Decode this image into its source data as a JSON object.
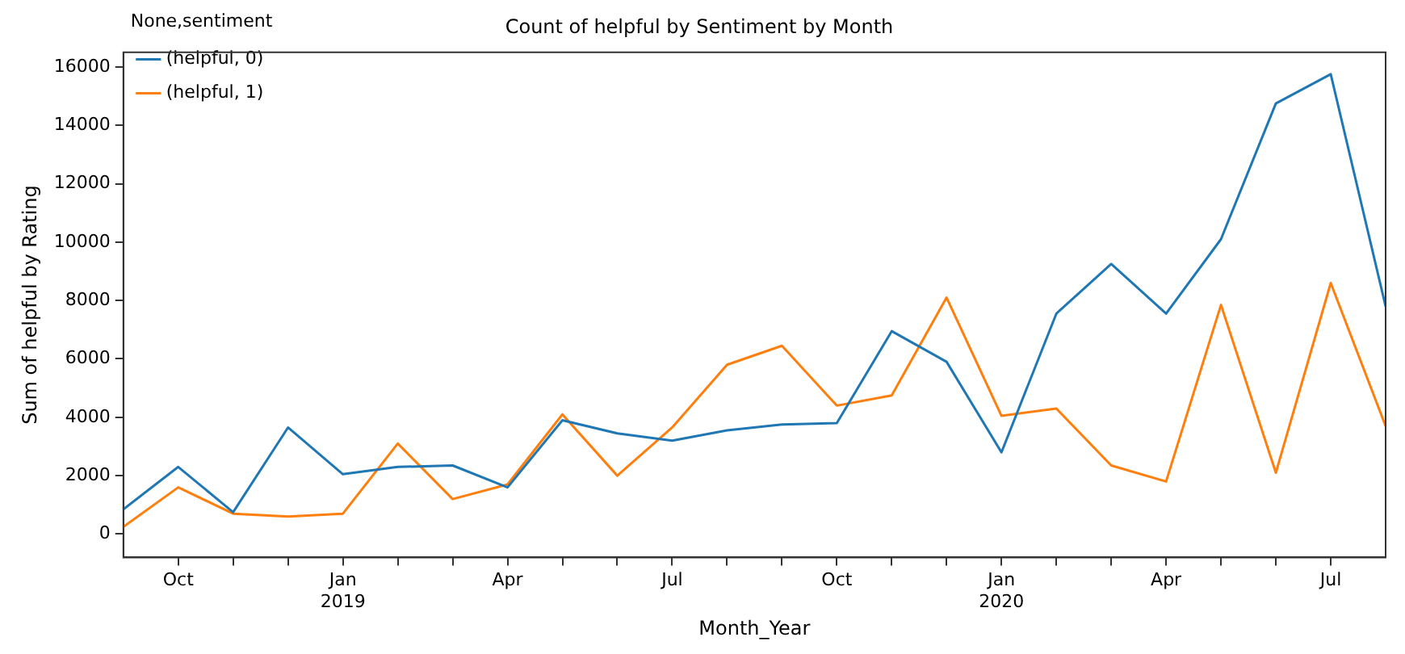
{
  "chart_data": {
    "type": "line",
    "title": "Count of helpful by Sentiment by Month",
    "xlabel": "Month_Year",
    "ylabel": "Sum of helpful by Rating",
    "legend_title": "None,sentiment",
    "legend": "top left",
    "grid": false,
    "x": [
      "2018-09",
      "2018-10",
      "2018-11",
      "2018-12",
      "2019-01",
      "2019-02",
      "2019-03",
      "2019-04",
      "2019-05",
      "2019-06",
      "2019-07",
      "2019-08",
      "2019-09",
      "2019-10",
      "2019-11",
      "2019-12",
      "2020-01",
      "2020-02",
      "2020-03",
      "2020-04",
      "2020-05",
      "2020-06",
      "2020-07",
      "2020-08"
    ],
    "xlim": [
      "2018-09",
      "2020-08"
    ],
    "xticks": [
      {
        "value": "2018-10",
        "label": "Oct"
      },
      {
        "value": "2018-11",
        "label": null
      },
      {
        "value": "2018-12",
        "label": null
      },
      {
        "value": "2019-01",
        "label": "Jan\n2019"
      },
      {
        "value": "2019-02",
        "label": null
      },
      {
        "value": "2019-03",
        "label": null
      },
      {
        "value": "2019-04",
        "label": "Apr"
      },
      {
        "value": "2019-05",
        "label": null
      },
      {
        "value": "2019-06",
        "label": null
      },
      {
        "value": "2019-07",
        "label": "Jul"
      },
      {
        "value": "2019-08",
        "label": null
      },
      {
        "value": "2019-09",
        "label": null
      },
      {
        "value": "2019-10",
        "label": "Oct"
      },
      {
        "value": "2019-11",
        "label": null
      },
      {
        "value": "2019-12",
        "label": null
      },
      {
        "value": "2020-01",
        "label": "Jan\n2020"
      },
      {
        "value": "2020-02",
        "label": null
      },
      {
        "value": "2020-03",
        "label": null
      },
      {
        "value": "2020-04",
        "label": "Apr"
      },
      {
        "value": "2020-05",
        "label": null
      },
      {
        "value": "2020-06",
        "label": null
      },
      {
        "value": "2020-07",
        "label": "Jul"
      }
    ],
    "ylim": [
      -800,
      16500
    ],
    "yticks": [
      0,
      2000,
      4000,
      6000,
      8000,
      10000,
      12000,
      14000,
      16000
    ],
    "series": [
      {
        "name": "(helpful, 0)",
        "color": "#1f77b4",
        "values": [
          850,
          2300,
          750,
          3650,
          2050,
          2300,
          2350,
          1600,
          3900,
          3450,
          3200,
          3550,
          3750,
          3800,
          6950,
          5900,
          2800,
          7550,
          9250,
          7550,
          10100,
          14750,
          15750,
          7800
        ]
      },
      {
        "name": "(helpful, 1)",
        "color": "#ff7f0e",
        "values": [
          250,
          1600,
          700,
          600,
          700,
          3100,
          1200,
          1700,
          4100,
          2000,
          3650,
          5800,
          6450,
          4400,
          4750,
          8100,
          4050,
          4300,
          2350,
          1800,
          7850,
          2100,
          8600,
          3700
        ]
      }
    ]
  }
}
